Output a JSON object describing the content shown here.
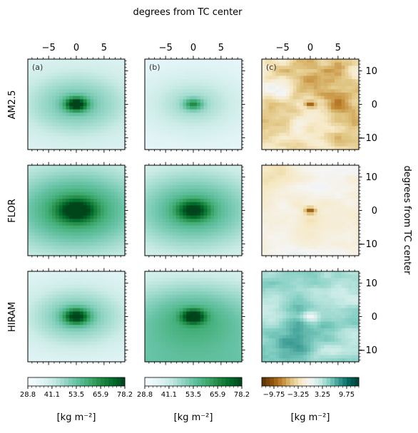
{
  "figure": {
    "top_axis_label": "degrees from TC center",
    "right_axis_label": "degrees from TC center"
  },
  "chart_data": {
    "type": "heatmap",
    "columns": [
      {
        "label": "(a)",
        "colormap": "BuGn",
        "colorbar_unit": "[kg m$^{-2}$]",
        "colorbar_unit_text": "[kg m⁻²]",
        "colorbar_ticks": [
          "28.8",
          "41.1",
          "53.5",
          "65.9",
          "78.2"
        ],
        "vmin": 28.8,
        "vmax": 78.2
      },
      {
        "label": "(b)",
        "colormap": "BuGn",
        "colorbar_unit_text": "[kg m⁻²]",
        "colorbar_ticks": [
          "28.8",
          "41.1",
          "53.5",
          "65.9",
          "78.2"
        ],
        "vmin": 28.8,
        "vmax": 78.2
      },
      {
        "label": "(c)",
        "colormap": "BrBG",
        "colorbar_unit_text": "[kg m⁻²]",
        "colorbar_ticks": [
          "−9.75",
          "−3.25",
          "3.25",
          "9.75"
        ],
        "vmin": -13,
        "vmax": 13
      }
    ],
    "rows": [
      "AM2.5",
      "FLOR",
      "HIRAM"
    ],
    "x_ticks": [
      "−5",
      "0",
      "5"
    ],
    "x_tick_values": [
      -5,
      0,
      5
    ],
    "y_ticks": [
      "10",
      "0",
      "−10"
    ],
    "y_tick_values": [
      10,
      0,
      -10
    ],
    "xlim": [
      -8.75,
      8.75
    ],
    "ylim": [
      -13.5,
      13.5
    ],
    "grid": false
  }
}
